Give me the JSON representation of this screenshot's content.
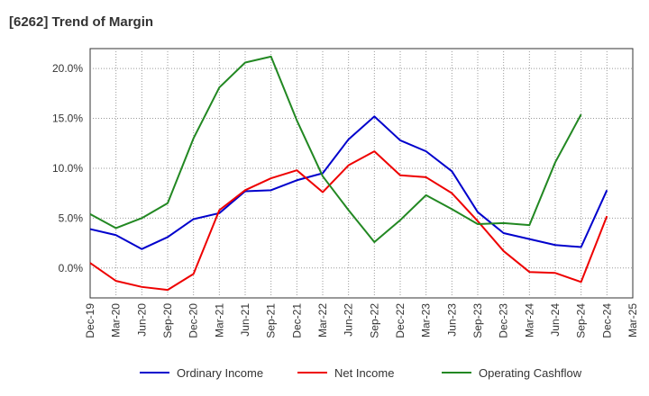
{
  "chart_data": {
    "type": "line",
    "title": "[6262]  Trend of Margin",
    "xlabel": "",
    "ylabel": "",
    "x": [
      "Dec-19",
      "Mar-20",
      "Jun-20",
      "Sep-20",
      "Dec-20",
      "Mar-21",
      "Jun-21",
      "Sep-21",
      "Dec-21",
      "Mar-22",
      "Jun-22",
      "Sep-22",
      "Dec-22",
      "Mar-23",
      "Jun-23",
      "Sep-23",
      "Dec-23",
      "Mar-24",
      "Jun-24",
      "Sep-24",
      "Dec-24",
      "Mar-25"
    ],
    "ylim": [
      -3.0,
      22.0
    ],
    "yticks": [
      0,
      5,
      10,
      15,
      20
    ],
    "ytick_labels": [
      "0.0%",
      "5.0%",
      "10.0%",
      "15.0%",
      "20.0%"
    ],
    "grid": true,
    "legend_position": "bottom",
    "series": [
      {
        "name": "Ordinary Income",
        "color": "#0000cc",
        "values": [
          3.9,
          3.3,
          1.9,
          3.1,
          4.9,
          5.5,
          7.7,
          7.8,
          8.8,
          9.5,
          12.9,
          15.2,
          12.8,
          11.7,
          9.7,
          5.6,
          3.5,
          2.9,
          2.3,
          2.1,
          7.8,
          null
        ]
      },
      {
        "name": "Net Income",
        "color": "#ee0000",
        "values": [
          0.5,
          -1.3,
          -1.9,
          -2.2,
          -0.6,
          5.8,
          7.8,
          9.0,
          9.8,
          7.6,
          10.3,
          11.7,
          9.3,
          9.1,
          7.5,
          4.7,
          1.7,
          -0.4,
          -0.5,
          -1.4,
          5.2,
          null
        ]
      },
      {
        "name": "Operating Cashflow",
        "color": "#228822",
        "values": [
          5.4,
          4.0,
          5.0,
          6.5,
          13.0,
          18.1,
          20.6,
          21.2,
          14.8,
          9.2,
          5.8,
          2.6,
          4.8,
          7.3,
          5.9,
          4.4,
          4.5,
          4.3,
          10.6,
          15.4,
          null,
          null
        ]
      }
    ]
  }
}
